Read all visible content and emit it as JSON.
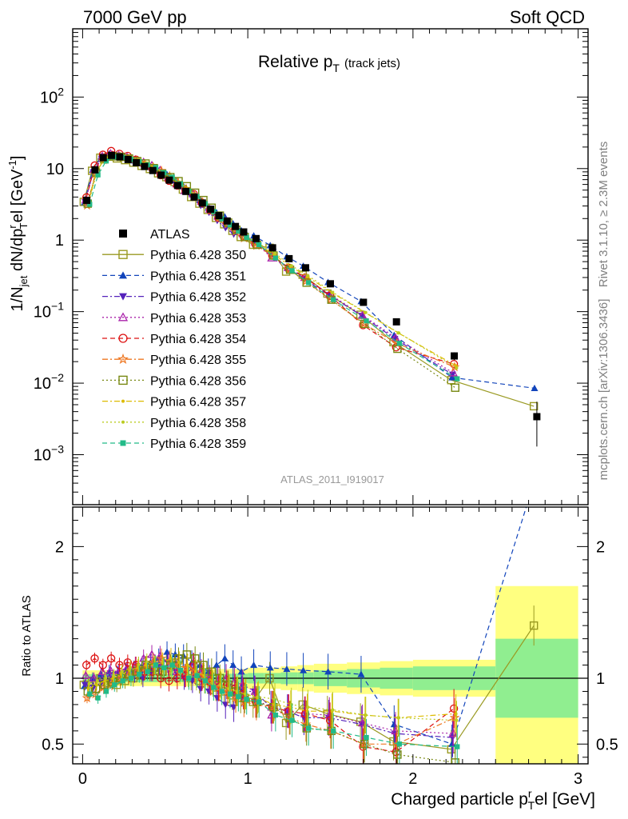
{
  "header": {
    "left": "7000 GeV pp",
    "right": "Soft QCD"
  },
  "side_labels": {
    "rivet": "Rivet 3.1.10, ≥ 2.3M events",
    "mcplots": "mcplots.cern.ch [arXiv:1306.3436]"
  },
  "chart_data": {
    "type": "scatter",
    "title": "Relative p_T (track jets)",
    "title_parts": {
      "main": "Relative p",
      "sub": "T",
      "suffix": "(track jets)"
    },
    "analysis_id": "ATLAS_2011_I919017",
    "xlabel": "Charged particle p_T^rel [GeV]",
    "xlabel_parts": {
      "main": "Charged particle p",
      "sup": "r",
      "sub": "T",
      "suffix": "el [GeV]"
    },
    "ylabel": "1/N_jet dN/dp_T^rel [GeV^-1]",
    "ylabel_parts": {
      "a": "1/N",
      "a_sub": "jet",
      "b": " dN/dp",
      "b_sup": "r",
      "b_sub": "T",
      "c": "el [GeV",
      "c_sup": "-1",
      "d": "]"
    },
    "ratio_ylabel": "Ratio to ATLAS",
    "xlim": [
      -0.06,
      3.06
    ],
    "ylim_main": [
      0.0002,
      900
    ],
    "ylim_ratio": [
      0.35,
      2.3
    ],
    "y_scale_main": "log",
    "x_ticks": [
      {
        "v": 0,
        "label": "0"
      },
      {
        "v": 1,
        "label": "1"
      },
      {
        "v": 2,
        "label": "2"
      },
      {
        "v": 3,
        "label": "3"
      }
    ],
    "y_ticks_main": [
      {
        "v": 0.001,
        "base": "10",
        "exp": "−3"
      },
      {
        "v": 0.01,
        "base": "10",
        "exp": "−2"
      },
      {
        "v": 0.1,
        "base": "10",
        "exp": "−1"
      },
      {
        "v": 1,
        "base": "1",
        "exp": ""
      },
      {
        "v": 10,
        "base": "10",
        "exp": ""
      },
      {
        "v": 100,
        "base": "10",
        "exp": "2"
      }
    ],
    "y_ticks_ratio": [
      {
        "v": 0.5,
        "label": "0.5"
      },
      {
        "v": 1,
        "label": "1"
      },
      {
        "v": 2,
        "label": "2"
      }
    ],
    "legend_position": "middle-left",
    "x": [
      0.025,
      0.075,
      0.125,
      0.175,
      0.225,
      0.275,
      0.325,
      0.375,
      0.425,
      0.475,
      0.525,
      0.575,
      0.625,
      0.675,
      0.725,
      0.775,
      0.825,
      0.875,
      0.925,
      0.975,
      1.05,
      1.15,
      1.25,
      1.35,
      1.5,
      1.7,
      1.9,
      2.25,
      2.75
    ],
    "x_bin_edges": [
      0,
      0.05,
      0.1,
      0.15,
      0.2,
      0.25,
      0.3,
      0.35,
      0.4,
      0.45,
      0.5,
      0.55,
      0.6,
      0.65,
      0.7,
      0.75,
      0.8,
      0.85,
      0.9,
      0.95,
      1.0,
      1.1,
      1.2,
      1.3,
      1.4,
      1.6,
      1.8,
      2.0,
      2.5,
      3.0
    ],
    "data": {
      "name": "ATLAS",
      "values": [
        3.6,
        9.6,
        14.2,
        15.3,
        14.6,
        13.4,
        12.1,
        10.7,
        9.4,
        8.1,
        6.9,
        5.8,
        4.8,
        4.0,
        3.3,
        2.7,
        2.2,
        1.85,
        1.55,
        1.3,
        1.05,
        0.78,
        0.55,
        0.41,
        0.245,
        0.135,
        0.072,
        0.024,
        0.0034
      ],
      "errors": [
        0.3,
        0.5,
        0.6,
        0.6,
        0.5,
        0.5,
        0.4,
        0.4,
        0.3,
        0.3,
        0.3,
        0.2,
        0.2,
        0.2,
        0.15,
        0.12,
        0.1,
        0.09,
        0.08,
        0.07,
        0.05,
        0.04,
        0.03,
        0.025,
        0.015,
        0.01,
        0.007,
        0.003,
        0.0021
      ],
      "color": "#000000"
    },
    "band_stat": [
      0.03,
      0.03,
      0.03,
      0.03,
      0.03,
      0.03,
      0.03,
      0.03,
      0.03,
      0.03,
      0.03,
      0.03,
      0.03,
      0.03,
      0.03,
      0.035,
      0.035,
      0.035,
      0.035,
      0.035,
      0.04,
      0.04,
      0.045,
      0.045,
      0.06,
      0.07,
      0.08,
      0.09,
      0.3
    ],
    "band_total": [
      0.06,
      0.06,
      0.06,
      0.06,
      0.06,
      0.06,
      0.06,
      0.06,
      0.06,
      0.06,
      0.06,
      0.06,
      0.06,
      0.06,
      0.06,
      0.07,
      0.07,
      0.07,
      0.07,
      0.07,
      0.08,
      0.08,
      0.09,
      0.1,
      0.11,
      0.12,
      0.13,
      0.14,
      0.7
    ],
    "band_stat_color": "#90EE90",
    "band_total_color": "#FFFF80",
    "series": [
      {
        "name": "Pythia 6.428 350",
        "color": "#9A9A22",
        "marker": "square-open",
        "dash": "solid",
        "ratio": [
          0.95,
          0.97,
          1.0,
          0.96,
          0.95,
          0.98,
          1.0,
          1.02,
          1.05,
          1.06,
          1.1,
          1.12,
          1.06,
          1.0,
          0.98,
          0.98,
          0.93,
          0.9,
          0.87,
          0.85,
          0.82,
          1.0,
          0.66,
          0.8,
          0.73,
          0.67,
          0.52,
          0.46,
          1.4
        ]
      },
      {
        "name": "Pythia 6.428 351",
        "color": "#1144BB",
        "marker": "triangle-up",
        "dash": "dash",
        "ratio": [
          0.94,
          1.0,
          1.03,
          1.05,
          1.04,
          1.06,
          1.07,
          1.1,
          1.12,
          1.15,
          1.2,
          1.18,
          1.17,
          1.12,
          1.1,
          1.05,
          1.1,
          1.15,
          1.1,
          1.05,
          1.1,
          1.08,
          1.07,
          1.06,
          1.05,
          1.03,
          0.65,
          0.5,
          2.5
        ]
      },
      {
        "name": "Pythia 6.428 352",
        "color": "#5522BB",
        "marker": "triangle-down",
        "dash": "dashdot",
        "ratio": [
          0.95,
          0.93,
          0.97,
          1.0,
          1.03,
          1.05,
          1.03,
          1.0,
          1.05,
          1.1,
          1.12,
          1.05,
          1.0,
          0.98,
          0.92,
          0.9,
          0.85,
          0.8,
          0.78,
          0.9,
          0.9,
          0.78,
          0.75,
          0.7,
          0.7,
          0.65,
          0.58,
          0.55,
          0.0
        ]
      },
      {
        "name": "Pythia 6.428 353",
        "color": "#AA22AA",
        "marker": "triangle-up-open",
        "dash": "dot",
        "ratio": [
          1.02,
          1.0,
          1.05,
          1.06,
          1.05,
          1.08,
          1.1,
          1.15,
          1.18,
          1.17,
          1.1,
          1.05,
          1.02,
          1.1,
          1.05,
          1.0,
          0.98,
          1.0,
          0.97,
          0.95,
          0.9,
          0.72,
          0.75,
          0.73,
          0.72,
          0.66,
          0.6,
          0.58,
          0.0
        ]
      },
      {
        "name": "Pythia 6.428 354",
        "color": "#DD1111",
        "marker": "circle-open",
        "dash": "dash",
        "ratio": [
          1.1,
          1.15,
          1.1,
          1.15,
          1.1,
          1.12,
          1.1,
          1.05,
          1.05,
          1.0,
          0.98,
          1.0,
          1.02,
          1.1,
          1.0,
          0.97,
          0.93,
          0.95,
          0.92,
          0.88,
          0.82,
          0.78,
          0.75,
          0.73,
          0.68,
          0.48,
          0.44,
          0.77,
          0.0
        ]
      },
      {
        "name": "Pythia 6.428 355",
        "color": "#EE7722",
        "marker": "star",
        "dash": "dashdot",
        "ratio": [
          0.85,
          0.88,
          0.93,
          0.96,
          1.0,
          1.02,
          1.05,
          1.08,
          1.12,
          1.15,
          1.13,
          1.1,
          1.08,
          1.05,
          1.02,
          0.97,
          0.93,
          0.9,
          0.85,
          0.82,
          0.8,
          0.78,
          0.7,
          0.65,
          0.6,
          0.5,
          0.5,
          0.7,
          0.0
        ]
      },
      {
        "name": "Pythia 6.428 356",
        "color": "#778811",
        "marker": "square-open",
        "dash": "dot",
        "ratio": [
          0.9,
          0.92,
          0.95,
          0.97,
          1.0,
          1.03,
          1.05,
          1.1,
          1.08,
          1.05,
          1.1,
          1.15,
          1.18,
          1.15,
          1.1,
          1.05,
          1.0,
          0.95,
          0.9,
          0.85,
          0.82,
          0.78,
          0.7,
          0.62,
          0.6,
          0.5,
          0.42,
          0.36,
          0.0
        ]
      },
      {
        "name": "Pythia 6.428 357",
        "color": "#DDBB00",
        "marker": "dot-small",
        "dash": "dashdot",
        "ratio": [
          0.92,
          0.95,
          0.98,
          1.0,
          1.03,
          1.06,
          1.08,
          1.1,
          1.1,
          1.12,
          1.15,
          1.12,
          1.1,
          1.05,
          1.02,
          0.98,
          0.95,
          0.92,
          0.9,
          0.88,
          0.85,
          0.8,
          0.78,
          0.75,
          0.75,
          0.72,
          0.7,
          0.73,
          0.0
        ]
      },
      {
        "name": "Pythia 6.428 358",
        "color": "#BBCC22",
        "marker": "dot-small",
        "dash": "dot",
        "ratio": [
          0.96,
          0.98,
          1.0,
          1.02,
          1.05,
          1.08,
          1.1,
          1.12,
          1.1,
          1.08,
          1.06,
          1.04,
          1.02,
          1.0,
          0.98,
          0.96,
          0.94,
          0.92,
          0.9,
          0.88,
          0.86,
          0.84,
          0.8,
          0.78,
          0.76,
          0.72,
          0.7,
          0.68,
          0.0
        ]
      },
      {
        "name": "Pythia 6.428 359",
        "color": "#22BB88",
        "marker": "square-filled",
        "dash": "dash",
        "ratio": [
          0.88,
          0.85,
          0.9,
          0.95,
          0.98,
          1.0,
          1.03,
          1.05,
          1.1,
          1.08,
          1.1,
          1.06,
          1.0,
          1.02,
          0.98,
          0.93,
          0.9,
          0.88,
          0.86,
          0.84,
          0.82,
          0.72,
          0.68,
          0.62,
          0.6,
          0.55,
          0.5,
          0.48,
          0.0
        ]
      }
    ]
  }
}
